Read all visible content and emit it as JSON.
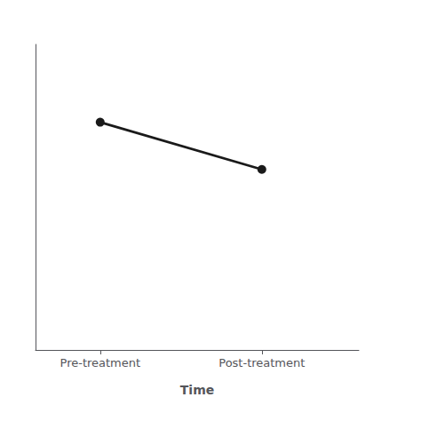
{
  "chart_data": {
    "type": "line",
    "x": [
      1,
      2
    ],
    "values": [
      0.82,
      0.65
    ],
    "color": "#1a1a1a",
    "marker": "circle",
    "xlabel": "Time",
    "xlim": [
      0.6,
      2.6
    ],
    "xticks": [
      {
        "value": 1,
        "label": "Pre-treatment"
      },
      {
        "value": 2,
        "label": "Post-treatment"
      }
    ],
    "ylim": [
      0.0,
      1.1
    ],
    "grid": false,
    "tick_labels": "x"
  }
}
